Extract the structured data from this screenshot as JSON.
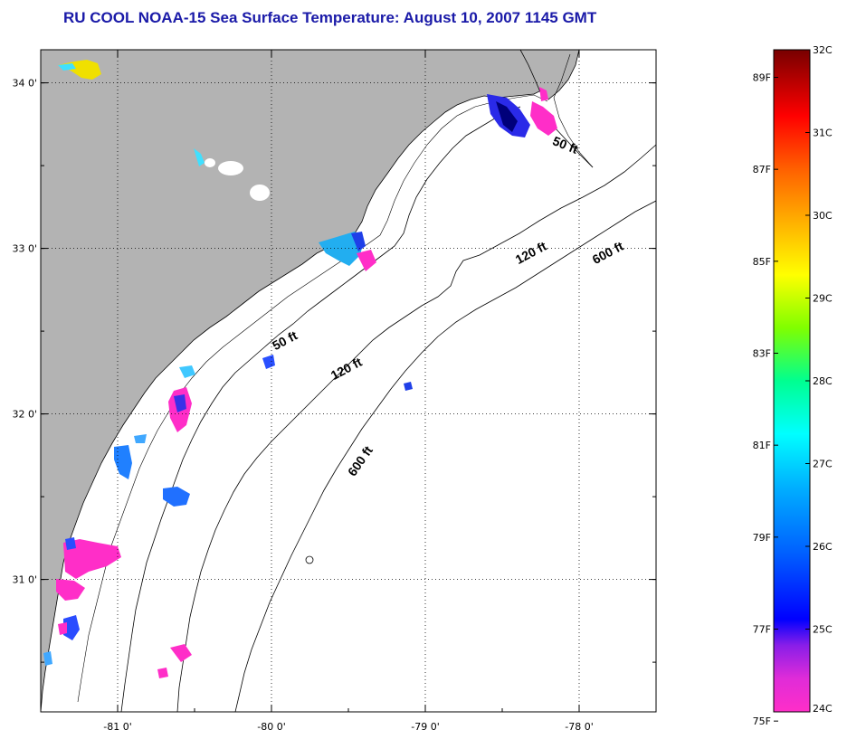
{
  "title": "RU COOL  NOAA-15  Sea Surface Temperature:  August 10, 2007 1145 GMT",
  "map": {
    "x_ticks": [
      "-81 0'",
      "-80 0'",
      "-79 0'",
      "-78 0'"
    ],
    "y_ticks": [
      "34 0'",
      "33 0'",
      "32 0'",
      "31 0'"
    ],
    "x_tick_values": [
      -81,
      -80,
      -79,
      -78
    ],
    "y_tick_values": [
      34,
      33,
      32,
      31
    ],
    "lon_range": [
      -81.5,
      -77.5
    ],
    "lat_range": [
      30.2,
      34.2
    ],
    "grid": true,
    "land_color": "#b3b3b3",
    "contours": [
      {
        "label": "50 ft",
        "lon": -78.1,
        "lat": 33.6
      },
      {
        "label": "50 ft",
        "lon": -79.9,
        "lat": 32.42
      },
      {
        "label": "120 ft",
        "lon": -78.3,
        "lat": 32.95
      },
      {
        "label": "120 ft",
        "lon": -79.5,
        "lat": 32.25
      },
      {
        "label": "600 ft",
        "lon": -77.8,
        "lat": 32.95
      },
      {
        "label": "600 ft",
        "lon": -79.4,
        "lat": 31.7
      }
    ]
  },
  "colorbar": {
    "celsius_labels": [
      "32C",
      "31C",
      "30C",
      "29C",
      "28C",
      "27C",
      "26C",
      "25C",
      "24C"
    ],
    "celsius_values": [
      32,
      31,
      30,
      29,
      28,
      27,
      26,
      25,
      24
    ],
    "fahrenheit_labels": [
      "89F",
      "87F",
      "85F",
      "83F",
      "81F",
      "79F",
      "77F",
      "75F"
    ],
    "fahrenheit_values": [
      89,
      87,
      85,
      83,
      81,
      79,
      77,
      75
    ],
    "range_c": [
      24,
      32
    ],
    "colors": [
      "#ff2ec8",
      "#c81ee0",
      "#0000ff",
      "#0078ff",
      "#00c8ff",
      "#00ffdc",
      "#00ff80",
      "#80ff00",
      "#ffff00",
      "#ffb400",
      "#ff6400",
      "#ff0000",
      "#c80000",
      "#780000"
    ]
  }
}
